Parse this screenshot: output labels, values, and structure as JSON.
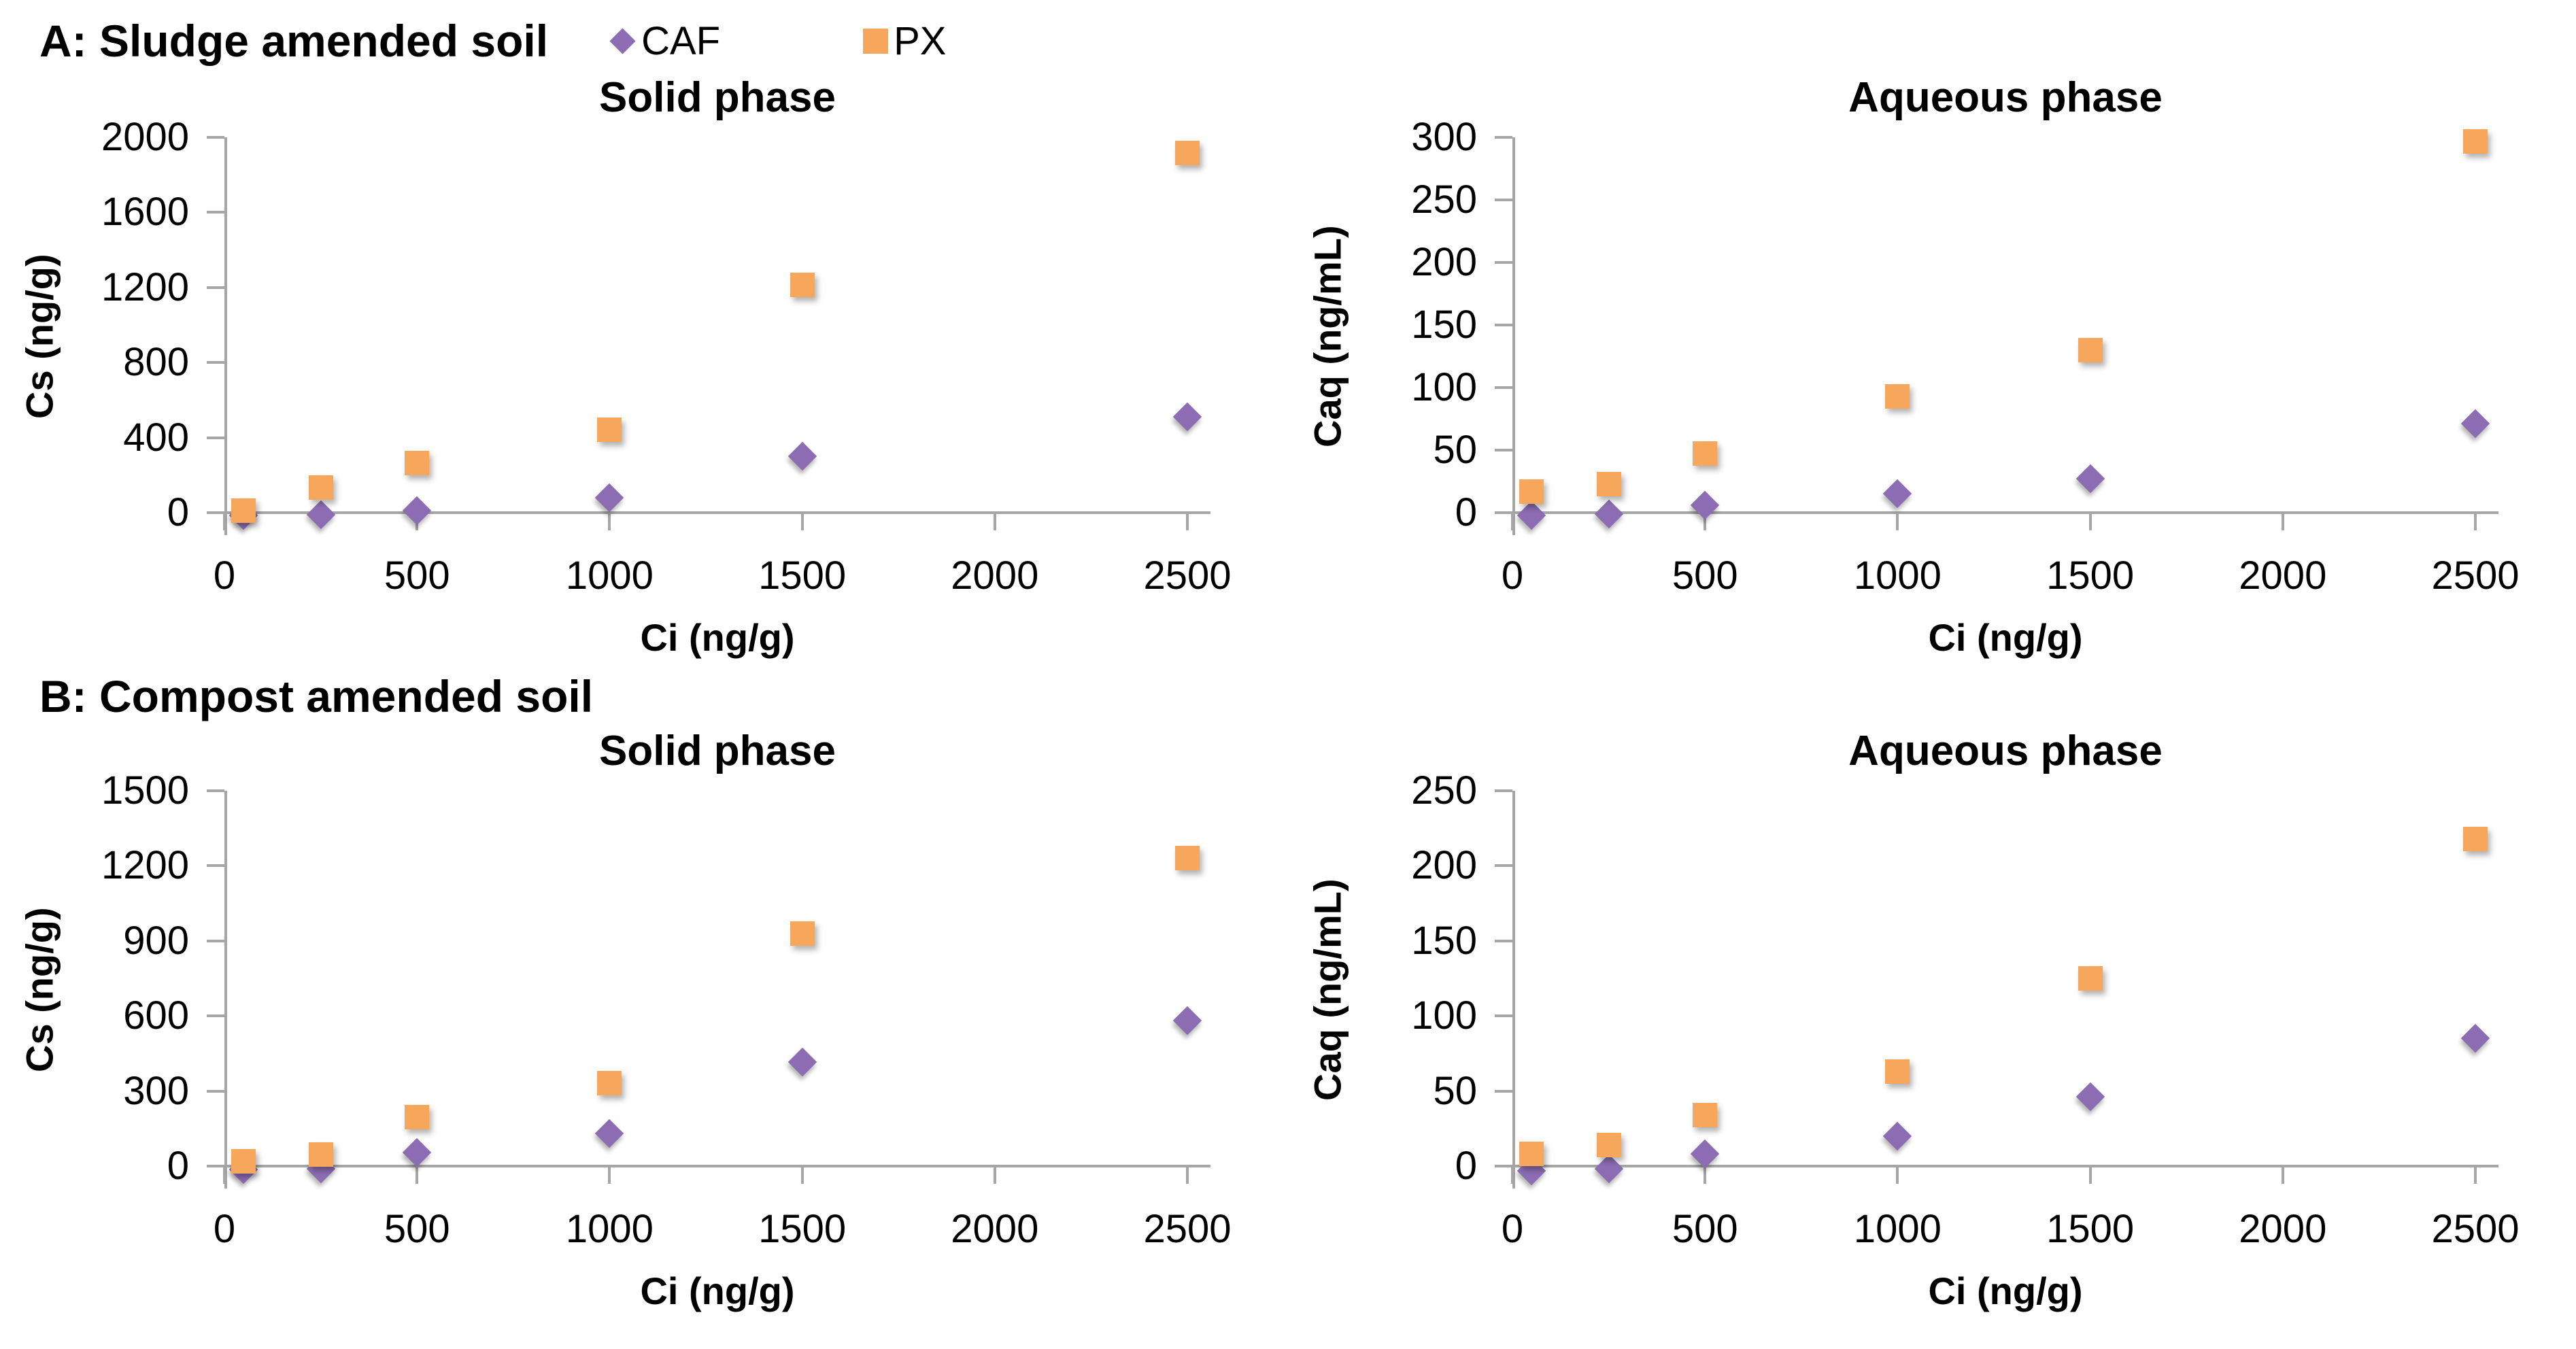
{
  "figure": {
    "panels": [
      {
        "id": "A",
        "label": "A: Sludge amended soil"
      },
      {
        "id": "B",
        "label": "B: Compost amended soil"
      }
    ],
    "legend": {
      "items": [
        {
          "label": "CAF",
          "marker": "diamond",
          "color": "#8C6DB4"
        },
        {
          "label": "PX",
          "marker": "square",
          "color": "#F6A75C"
        }
      ],
      "position": "top-header-right-of-label"
    },
    "colors": {
      "caf": "#8C6DB4",
      "px": "#F6A75C",
      "axis": "#A6A6A6",
      "text": "#000000",
      "background": "#FFFFFF"
    }
  },
  "chart_data": [
    {
      "id": "sludge-solid",
      "panel": "A",
      "type": "scatter",
      "title": "Solid phase",
      "xlabel": "Ci (ng/g)",
      "ylabel": "Cs (ng/g)",
      "xlim": [
        0,
        2560
      ],
      "ylim": [
        -120,
        2000
      ],
      "xticks": [
        0,
        500,
        1000,
        1500,
        2000,
        2500
      ],
      "yticks": [
        0,
        400,
        800,
        1200,
        1600,
        2000
      ],
      "grid": false,
      "x": [
        50,
        250,
        500,
        1000,
        1500,
        2500
      ],
      "series": [
        {
          "name": "CAF",
          "marker": "diamond",
          "color": "#8C6DB4",
          "values": [
            -15,
            -10,
            10,
            80,
            300,
            510
          ]
        },
        {
          "name": "PX",
          "marker": "square",
          "color": "#F6A75C",
          "values": [
            10,
            135,
            265,
            440,
            1215,
            1915
          ]
        }
      ]
    },
    {
      "id": "sludge-aqueous",
      "panel": "A",
      "type": "scatter",
      "title": "Aqueous phase",
      "xlabel": "Ci (ng/g)",
      "ylabel": "Caq (ng/mL)",
      "xlim": [
        0,
        2560
      ],
      "ylim": [
        -18,
        300
      ],
      "xticks": [
        0,
        500,
        1000,
        1500,
        2000,
        2500
      ],
      "yticks": [
        0,
        50,
        100,
        150,
        200,
        250,
        300
      ],
      "grid": false,
      "x": [
        50,
        250,
        500,
        1000,
        1500,
        2500
      ],
      "series": [
        {
          "name": "CAF",
          "marker": "diamond",
          "color": "#8C6DB4",
          "values": [
            -2,
            -1,
            6,
            15,
            27,
            71
          ]
        },
        {
          "name": "PX",
          "marker": "square",
          "color": "#F6A75C",
          "values": [
            17,
            23,
            47,
            93,
            130,
            297
          ]
        }
      ]
    },
    {
      "id": "compost-solid",
      "panel": "B",
      "type": "scatter",
      "title": "Solid phase",
      "xlabel": "Ci (ng/g)",
      "ylabel": "Cs (ng/g)",
      "xlim": [
        0,
        2560
      ],
      "ylim": [
        -90,
        1500
      ],
      "xticks": [
        0,
        500,
        1000,
        1500,
        2000,
        2500
      ],
      "yticks": [
        0,
        300,
        600,
        900,
        1200,
        1500
      ],
      "grid": false,
      "x": [
        50,
        250,
        500,
        1000,
        1500,
        2500
      ],
      "series": [
        {
          "name": "CAF",
          "marker": "diamond",
          "color": "#8C6DB4",
          "values": [
            -15,
            -10,
            55,
            130,
            415,
            580
          ]
        },
        {
          "name": "PX",
          "marker": "square",
          "color": "#F6A75C",
          "values": [
            20,
            45,
            195,
            330,
            930,
            1230
          ]
        }
      ]
    },
    {
      "id": "compost-aqueous",
      "panel": "B",
      "type": "scatter",
      "title": "Aqueous phase",
      "xlabel": "Ci (ng/g)",
      "ylabel": "Caq (ng/mL)",
      "xlim": [
        0,
        2560
      ],
      "ylim": [
        -15,
        250
      ],
      "xticks": [
        0,
        500,
        1000,
        1500,
        2000,
        2500
      ],
      "yticks": [
        0,
        50,
        100,
        150,
        200,
        250
      ],
      "grid": false,
      "x": [
        50,
        250,
        500,
        1000,
        1500,
        2500
      ],
      "series": [
        {
          "name": "CAF",
          "marker": "diamond",
          "color": "#8C6DB4",
          "values": [
            -3,
            -2,
            8,
            20,
            46,
            85
          ]
        },
        {
          "name": "PX",
          "marker": "square",
          "color": "#F6A75C",
          "values": [
            8,
            14,
            34,
            63,
            125,
            218
          ]
        }
      ]
    }
  ]
}
